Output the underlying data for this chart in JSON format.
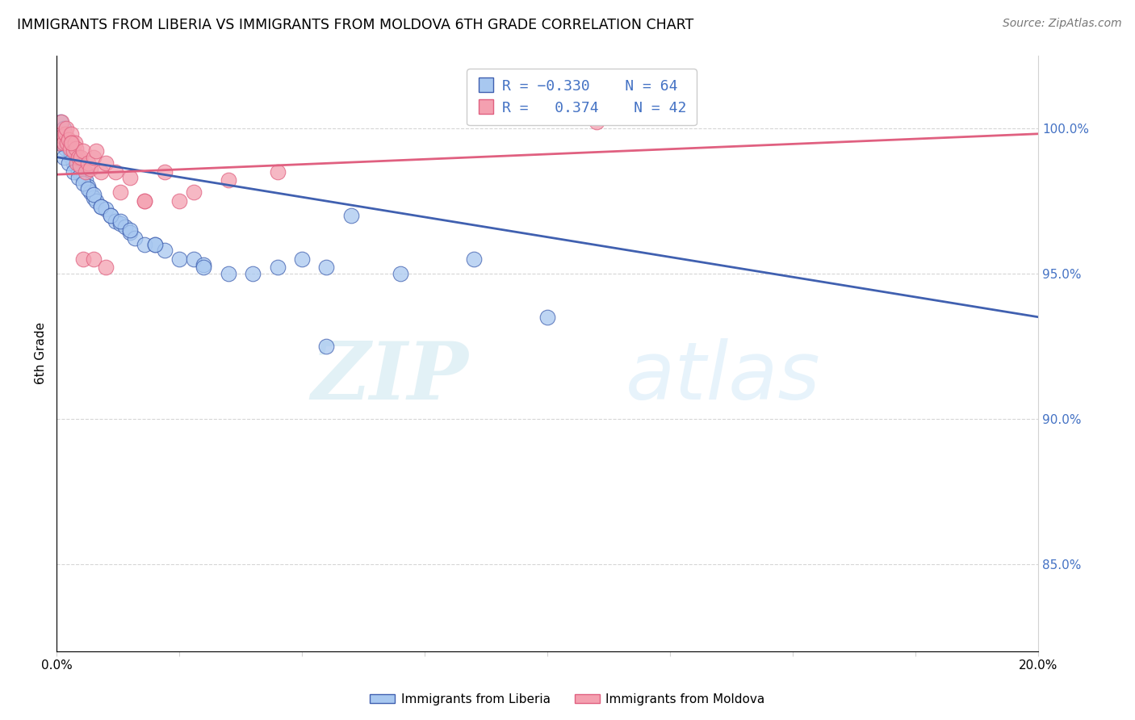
{
  "title": "IMMIGRANTS FROM LIBERIA VS IMMIGRANTS FROM MOLDOVA 6TH GRADE CORRELATION CHART",
  "source": "Source: ZipAtlas.com",
  "ylabel": "6th Grade",
  "legend_label1": "Immigrants from Liberia",
  "legend_label2": "Immigrants from Moldova",
  "R1": -0.33,
  "N1": 64,
  "R2": 0.374,
  "N2": 42,
  "xmin": 0.0,
  "xmax": 20.0,
  "ymin": 82.0,
  "ymax": 102.5,
  "yticks": [
    85.0,
    90.0,
    95.0,
    100.0
  ],
  "ytick_labels": [
    "85.0%",
    "90.0%",
    "95.0%",
    "100.0%"
  ],
  "xticks": [
    0.0,
    2.5,
    5.0,
    7.5,
    10.0,
    12.5,
    15.0,
    17.5,
    20.0
  ],
  "xtick_labels": [
    "0.0%",
    "",
    "",
    "",
    "",
    "",
    "",
    "",
    "20.0%"
  ],
  "color_liberia": "#A8C8F0",
  "color_moldova": "#F4A0B0",
  "trend_color_liberia": "#4060B0",
  "trend_color_moldova": "#E06080",
  "watermark_zip": "ZIP",
  "watermark_atlas": "atlas",
  "liberia_x": [
    0.05,
    0.08,
    0.1,
    0.12,
    0.15,
    0.18,
    0.2,
    0.22,
    0.25,
    0.28,
    0.3,
    0.32,
    0.35,
    0.38,
    0.4,
    0.42,
    0.45,
    0.48,
    0.5,
    0.52,
    0.55,
    0.58,
    0.6,
    0.65,
    0.7,
    0.75,
    0.8,
    0.9,
    1.0,
    1.1,
    1.2,
    1.3,
    1.4,
    1.5,
    1.6,
    1.8,
    2.0,
    2.2,
    2.5,
    2.8,
    3.0,
    3.5,
    4.0,
    4.5,
    5.0,
    5.5,
    6.0,
    7.0,
    8.5,
    0.15,
    0.25,
    0.35,
    0.45,
    0.55,
    0.65,
    0.75,
    0.9,
    1.1,
    1.3,
    1.5,
    2.0,
    3.0,
    5.5,
    10.0
  ],
  "liberia_y": [
    99.8,
    100.2,
    99.5,
    99.8,
    100.0,
    99.3,
    99.6,
    99.4,
    99.5,
    99.2,
    99.0,
    99.3,
    98.8,
    99.0,
    98.7,
    98.9,
    98.5,
    98.7,
    98.4,
    98.6,
    98.3,
    98.5,
    98.2,
    98.0,
    97.8,
    97.6,
    97.5,
    97.3,
    97.2,
    97.0,
    96.8,
    96.7,
    96.6,
    96.4,
    96.2,
    96.0,
    96.0,
    95.8,
    95.5,
    95.5,
    95.3,
    95.0,
    95.0,
    95.2,
    95.5,
    95.2,
    97.0,
    95.0,
    95.5,
    99.0,
    98.8,
    98.5,
    98.3,
    98.1,
    97.9,
    97.7,
    97.3,
    97.0,
    96.8,
    96.5,
    96.0,
    95.2,
    92.5,
    93.5
  ],
  "moldova_x": [
    0.05,
    0.08,
    0.1,
    0.12,
    0.15,
    0.18,
    0.2,
    0.22,
    0.25,
    0.28,
    0.3,
    0.32,
    0.35,
    0.38,
    0.4,
    0.42,
    0.45,
    0.48,
    0.5,
    0.55,
    0.6,
    0.65,
    0.7,
    0.75,
    0.8,
    0.9,
    1.0,
    1.2,
    1.5,
    1.8,
    2.2,
    2.8,
    3.5,
    4.5,
    0.55,
    0.75,
    1.0,
    1.3,
    1.8,
    2.5,
    0.3,
    11.0
  ],
  "moldova_y": [
    99.5,
    99.8,
    100.2,
    99.7,
    99.5,
    99.8,
    100.0,
    99.5,
    99.6,
    99.3,
    99.8,
    99.5,
    99.2,
    99.5,
    99.3,
    98.8,
    99.0,
    98.7,
    99.0,
    99.2,
    98.5,
    98.8,
    98.6,
    99.0,
    99.2,
    98.5,
    98.8,
    98.5,
    98.3,
    97.5,
    98.5,
    97.8,
    98.2,
    98.5,
    95.5,
    95.5,
    95.2,
    97.8,
    97.5,
    97.5,
    99.5,
    100.2
  ]
}
